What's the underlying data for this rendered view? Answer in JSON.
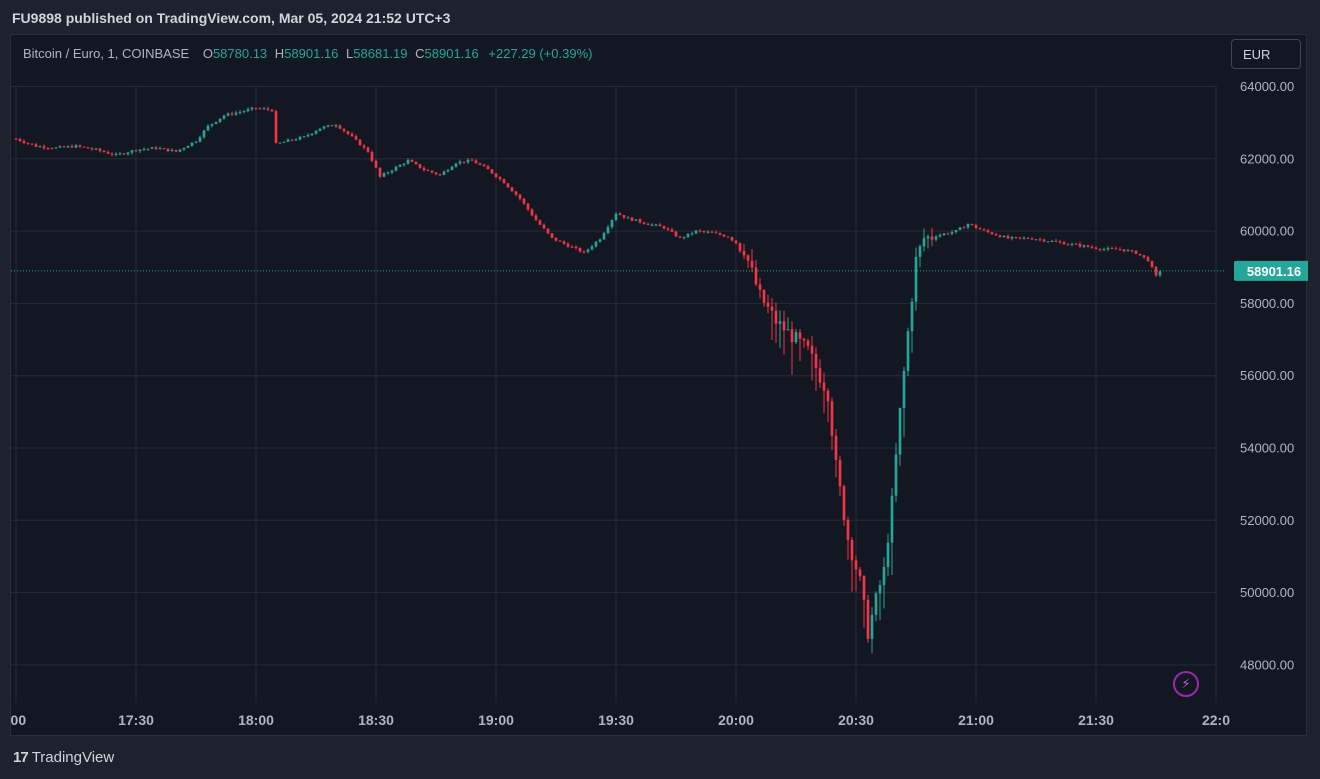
{
  "header": {
    "published": "FU9898 published on TradingView.com, Mar 05, 2024 21:52 UTC+3"
  },
  "legend": {
    "title": "Bitcoin / Euro, 1, COINBASE",
    "o_label": "O",
    "o_value": "58780.13",
    "h_label": "H",
    "h_value": "58901.16",
    "l_label": "L",
    "l_value": "58681.19",
    "c_label": "C",
    "c_value": "58901.16",
    "change": "+227.29 (+0.39%)"
  },
  "currency_button": "EUR",
  "last_price_label": "58901.16",
  "footer": {
    "brand": "TradingView",
    "logo_mark": "17"
  },
  "colors": {
    "up": "#26a69a",
    "down": "#f23645",
    "background": "#131722",
    "grid": "#262a35",
    "text": "#b2b5be"
  },
  "chart_data": {
    "type": "candlestick",
    "symbol": "Bitcoin / Euro",
    "interval": "1",
    "exchange": "COINBASE",
    "ylim": [
      47000,
      64500
    ],
    "yticks": [
      "64000.00",
      "62000.00",
      "60000.00",
      "58000.00",
      "56000.00",
      "54000.00",
      "52000.00",
      "50000.00",
      "48000.00"
    ],
    "ytick_values": [
      64000,
      62000,
      60000,
      58000,
      56000,
      54000,
      52000,
      50000,
      48000
    ],
    "xticks": [
      ":00",
      "17:30",
      "18:00",
      "18:30",
      "19:00",
      "19:30",
      "20:00",
      "20:30",
      "21:00",
      "21:30",
      "22:0"
    ],
    "xtick_minutes": [
      0,
      30,
      60,
      90,
      120,
      150,
      180,
      210,
      240,
      270,
      300
    ],
    "last_price": 58901.16,
    "close_path": [
      [
        0,
        62550
      ],
      [
        5,
        62350
      ],
      [
        10,
        62300
      ],
      [
        15,
        62350
      ],
      [
        20,
        62250
      ],
      [
        25,
        62100
      ],
      [
        30,
        62250
      ],
      [
        35,
        62300
      ],
      [
        40,
        62200
      ],
      [
        45,
        62500
      ],
      [
        48,
        62900
      ],
      [
        52,
        63200
      ],
      [
        56,
        63300
      ],
      [
        60,
        63400
      ],
      [
        64,
        63350
      ],
      [
        65,
        62400
      ],
      [
        68,
        62500
      ],
      [
        72,
        62600
      ],
      [
        76,
        62850
      ],
      [
        80,
        62950
      ],
      [
        84,
        62600
      ],
      [
        88,
        62200
      ],
      [
        91,
        61500
      ],
      [
        94,
        61700
      ],
      [
        98,
        61950
      ],
      [
        102,
        61700
      ],
      [
        106,
        61550
      ],
      [
        110,
        61900
      ],
      [
        114,
        61950
      ],
      [
        118,
        61700
      ],
      [
        122,
        61350
      ],
      [
        126,
        60900
      ],
      [
        130,
        60300
      ],
      [
        134,
        59800
      ],
      [
        138,
        59600
      ],
      [
        142,
        59400
      ],
      [
        146,
        59800
      ],
      [
        150,
        60500
      ],
      [
        153,
        60350
      ],
      [
        158,
        60200
      ],
      [
        162,
        60100
      ],
      [
        166,
        59800
      ],
      [
        170,
        60000
      ],
      [
        174,
        59950
      ],
      [
        178,
        59850
      ],
      [
        182,
        59500
      ],
      [
        186,
        58200
      ],
      [
        190,
        57500
      ],
      [
        194,
        57100
      ],
      [
        198,
        56700
      ],
      [
        203,
        55500
      ],
      [
        205,
        53500
      ],
      [
        208,
        51500
      ],
      [
        211,
        50300
      ],
      [
        213,
        48900
      ],
      [
        215,
        49800
      ],
      [
        217,
        50600
      ],
      [
        219,
        52500
      ],
      [
        221,
        55000
      ],
      [
        223,
        57200
      ],
      [
        225,
        59200
      ],
      [
        227,
        59800
      ],
      [
        231,
        59900
      ],
      [
        235,
        60000
      ],
      [
        238,
        60200
      ],
      [
        242,
        60000
      ],
      [
        248,
        59800
      ],
      [
        254,
        59800
      ],
      [
        260,
        59700
      ],
      [
        266,
        59600
      ],
      [
        272,
        59500
      ],
      [
        276,
        59500
      ],
      [
        280,
        59400
      ],
      [
        283,
        59200
      ],
      [
        285,
        58750
      ],
      [
        286,
        58901
      ]
    ]
  }
}
